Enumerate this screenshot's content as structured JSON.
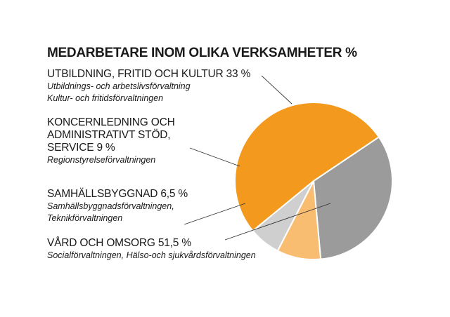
{
  "chart_data": {
    "type": "pie",
    "title": "MEDARBETARE INOM OLIKA VERKSAMHETER %",
    "unit": "%",
    "slices": [
      {
        "label_lines": [
          "UTBILDNING, FRITID OCH KULTUR 33 %"
        ],
        "sub_lines": [
          "Utbildnings- och arbetslivsförvaltning",
          "Kultur- och fritidsförvaltningen"
        ],
        "value": 33,
        "color": "#9b9b9b"
      },
      {
        "label_lines": [
          "KONCERNLEDNING OCH",
          "ADMINISTRATIVT STÖD,",
          "SERVICE 9 %"
        ],
        "sub_lines": [
          "Regionstyrelseförvaltningen"
        ],
        "value": 9,
        "color": "#f9bd72"
      },
      {
        "label_lines": [
          "SAMHÄLLSBYGGNAD 6,5 %"
        ],
        "sub_lines": [
          "Samhällsbyggnadsförvaltningen,",
          "Teknikförvaltningen"
        ],
        "value": 6.5,
        "color": "#cfcfcf"
      },
      {
        "label_lines": [
          "VÅRD OCH OMSORG 51,5 %"
        ],
        "sub_lines": [
          "Socialförvaltningen, Hälso-och sjukvårdsförvaltningen"
        ],
        "value": 51.5,
        "color": "#f39a1e"
      }
    ]
  }
}
